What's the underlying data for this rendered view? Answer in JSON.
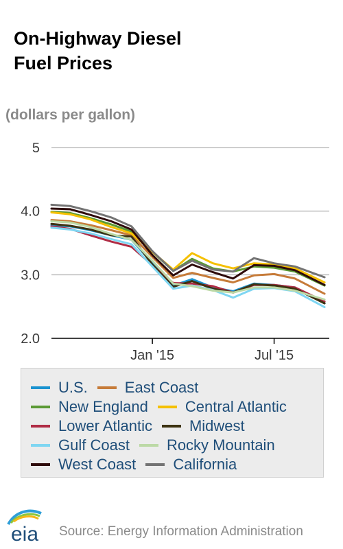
{
  "page": {
    "title_line1": "On-Highway Diesel",
    "title_line2": "Fuel Prices",
    "units": "(dollars per gallon)",
    "source": "Source: Energy Information Administration",
    "logo_text": "eia"
  },
  "chart_data": {
    "type": "line",
    "title": "On-Highway Diesel Fuel Prices",
    "ylabel": "(dollars per gallon)",
    "xlabel": "",
    "ylim": [
      2.0,
      5.0
    ],
    "xlim": [
      "2014-08-04",
      "2015-09-21"
    ],
    "yticks": [
      {
        "value": 5,
        "label": "5"
      },
      {
        "value": 4,
        "label": "4.0"
      },
      {
        "value": 3,
        "label": "3.0"
      },
      {
        "value": 2,
        "label": "2.0"
      }
    ],
    "xticks": [
      {
        "value": "2015-01-01",
        "label": "Jan '15"
      },
      {
        "value": "2015-07-01",
        "label": "Jul '15"
      }
    ],
    "grid": true,
    "legend_position": "bottom",
    "x": [
      "2014-08-04",
      "2014-09-01",
      "2014-10-01",
      "2014-11-01",
      "2014-12-01",
      "2015-01-01",
      "2015-02-01",
      "2015-03-01",
      "2015-04-01",
      "2015-05-01",
      "2015-06-01",
      "2015-07-01",
      "2015-08-01",
      "2015-09-14"
    ],
    "series": [
      {
        "name": "U.S.",
        "color": "#1a93d0",
        "values": [
          3.78,
          3.76,
          3.7,
          3.62,
          3.55,
          3.18,
          2.83,
          2.93,
          2.8,
          2.74,
          2.86,
          2.84,
          2.8,
          2.55
        ]
      },
      {
        "name": "East Coast",
        "color": "#c67b39",
        "values": [
          3.86,
          3.84,
          3.78,
          3.7,
          3.62,
          3.28,
          2.95,
          3.03,
          2.95,
          2.88,
          2.99,
          3.01,
          2.94,
          2.7
        ]
      },
      {
        "name": "New England",
        "color": "#5b9a35",
        "values": [
          3.99,
          3.97,
          3.89,
          3.79,
          3.68,
          3.36,
          3.06,
          3.25,
          3.1,
          3.05,
          3.13,
          3.11,
          3.05,
          2.83
        ]
      },
      {
        "name": "Central Atlantic",
        "color": "#f5c000",
        "values": [
          3.98,
          3.95,
          3.87,
          3.75,
          3.65,
          3.36,
          3.08,
          3.34,
          3.18,
          3.1,
          3.18,
          3.16,
          3.1,
          2.88
        ]
      },
      {
        "name": "Lower Atlantic",
        "color": "#b02c45",
        "values": [
          3.76,
          3.72,
          3.62,
          3.52,
          3.44,
          3.15,
          2.87,
          2.86,
          2.82,
          2.72,
          2.84,
          2.84,
          2.8,
          2.58
        ]
      },
      {
        "name": "Midwest",
        "color": "#3d3311",
        "values": [
          3.8,
          3.77,
          3.71,
          3.62,
          3.6,
          3.16,
          2.81,
          2.9,
          2.78,
          2.72,
          2.85,
          2.83,
          2.78,
          2.55
        ]
      },
      {
        "name": "Gulf Coast",
        "color": "#7fd6f2",
        "values": [
          3.74,
          3.71,
          3.65,
          3.56,
          3.48,
          3.13,
          2.78,
          2.83,
          2.76,
          2.64,
          2.78,
          2.79,
          2.74,
          2.49
        ]
      },
      {
        "name": "Rocky Mountain",
        "color": "#bcd9a6",
        "values": [
          3.84,
          3.82,
          3.75,
          3.64,
          3.55,
          3.22,
          2.86,
          2.82,
          2.75,
          2.72,
          2.8,
          2.8,
          2.75,
          2.61
        ]
      },
      {
        "name": "West Coast",
        "color": "#2e0a0a",
        "values": [
          4.04,
          4.03,
          3.94,
          3.84,
          3.71,
          3.31,
          2.99,
          3.16,
          3.04,
          2.94,
          3.15,
          3.14,
          3.07,
          2.84
        ]
      },
      {
        "name": "California",
        "color": "#737373",
        "values": [
          4.1,
          4.08,
          4.0,
          3.9,
          3.76,
          3.37,
          3.06,
          3.22,
          3.08,
          3.05,
          3.26,
          3.18,
          3.13,
          2.96
        ]
      }
    ]
  }
}
